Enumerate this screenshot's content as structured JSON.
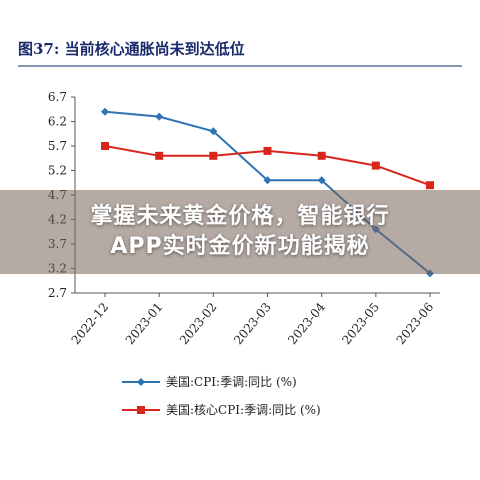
{
  "figure_title": "图37:  当前核心通胀尚未到达低位",
  "overlay": {
    "line1": "掌握未来黄金价格，智能银行",
    "line2": "APP实时金价新功能揭秘"
  },
  "colors": {
    "title": "#1a2a6c",
    "series_cpi": "#2e74b5",
    "series_core": "#d9261c",
    "axis": "#555555"
  },
  "chart_data": {
    "type": "line",
    "categories": [
      "2022-12",
      "2023-01",
      "2023-02",
      "2023-03",
      "2023-04",
      "2023-05",
      "2023-06"
    ],
    "series": [
      {
        "name": "美国:CPI:季调:同比 (%)",
        "values": [
          6.4,
          6.3,
          6.0,
          5.0,
          5.0,
          4.0,
          3.1
        ],
        "marker": "diamond"
      },
      {
        "name": "美国:核心CPI:季调:同比 (%)",
        "values": [
          5.7,
          5.5,
          5.5,
          5.6,
          5.5,
          5.3,
          4.9
        ],
        "marker": "square"
      }
    ],
    "yticks": [
      "6.7",
      "6.2",
      "5.7",
      "5.2",
      "4.7",
      "4.2",
      "3.7",
      "3.2",
      "2.7"
    ],
    "ylim": [
      2.7,
      6.7
    ],
    "grid": false,
    "legend_position": "bottom"
  }
}
